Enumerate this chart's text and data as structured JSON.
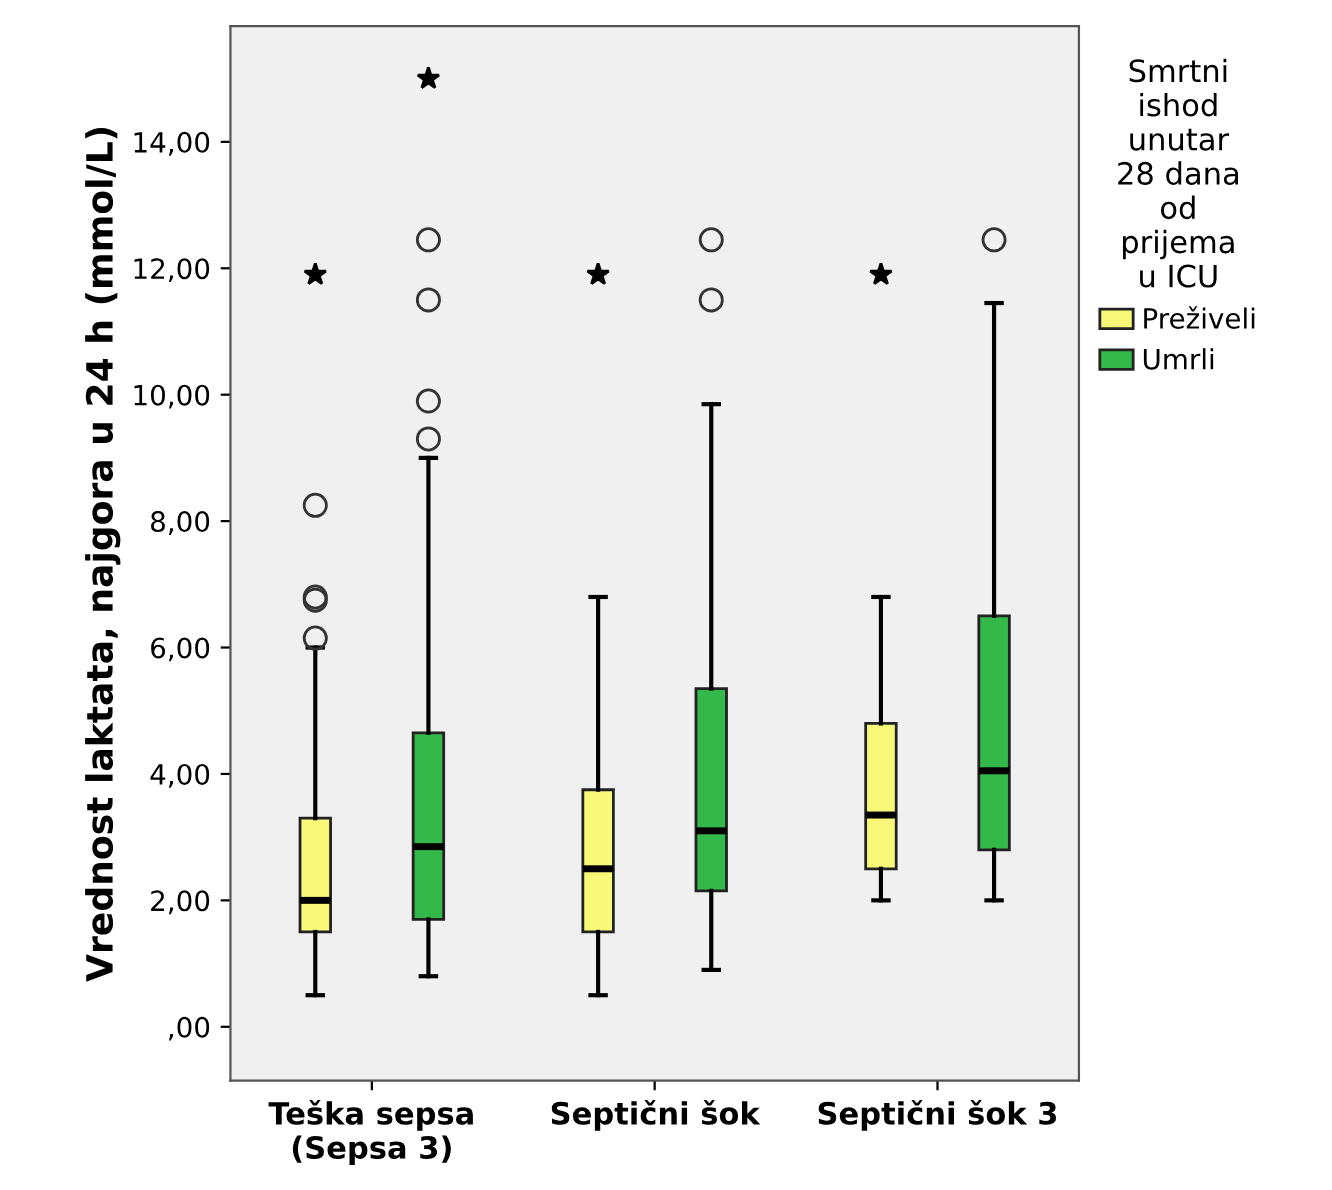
{
  "chart_data": {
    "type": "box",
    "ylabel": "Vrednost laktata, najgora u 24 h (mmol/L)",
    "legend_title": "Smrtni\nishod\nunutar\n28 dana\nod\nprijema\nu ICU",
    "legend": "right",
    "grid": false,
    "categories": [
      "Teška sepsa\n(Sepsa 3)",
      "Septični šok",
      "Septični šok 3"
    ],
    "ylim": [
      -0.85,
      15.83
    ],
    "yticks": [
      {
        "value": 0,
        "label": ",00"
      },
      {
        "value": 2,
        "label": "2,00"
      },
      {
        "value": 4,
        "label": "4,00"
      },
      {
        "value": 6,
        "label": "6,00"
      },
      {
        "value": 8,
        "label": "8,00"
      },
      {
        "value": 10,
        "label": "10,00"
      },
      {
        "value": 12,
        "label": "12,00"
      },
      {
        "value": 14,
        "label": "14,00"
      }
    ],
    "series": [
      {
        "name": "Preživeli",
        "color": "#f8f878",
        "boxes": [
          {
            "low": 0.5,
            "q1": 1.5,
            "median": 2.0,
            "q3": 3.3,
            "high": 6.0,
            "outliers": [
              6.15,
              6.75,
              6.8,
              8.25,
              11.9
            ]
          },
          {
            "low": 0.5,
            "q1": 1.5,
            "median": 2.5,
            "q3": 3.75,
            "high": 6.8,
            "outliers": [
              11.9
            ]
          },
          {
            "low": 2.0,
            "q1": 2.5,
            "median": 3.35,
            "q3": 4.8,
            "high": 6.8,
            "outliers": [
              11.9
            ]
          }
        ]
      },
      {
        "name": "Umrli",
        "color": "#33b84a",
        "boxes": [
          {
            "low": 0.8,
            "q1": 1.7,
            "median": 2.85,
            "q3": 4.65,
            "high": 9.0,
            "outliers": [
              9.3,
              9.9,
              11.5,
              12.45,
              15.0
            ]
          },
          {
            "low": 0.9,
            "q1": 2.15,
            "median": 3.1,
            "q3": 5.35,
            "high": 9.85,
            "outliers": [
              11.5,
              12.45
            ]
          },
          {
            "low": 2.0,
            "q1": 2.8,
            "median": 4.05,
            "q3": 6.5,
            "high": 11.45,
            "outliers": [
              12.45
            ]
          }
        ]
      }
    ]
  }
}
